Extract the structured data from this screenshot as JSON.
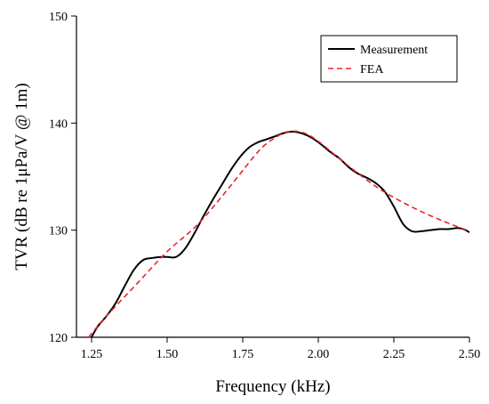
{
  "chart_data": {
    "type": "line",
    "title": "",
    "xlabel": "Frequency (kHz)",
    "ylabel": "TVR (dB re 1μPa/V @ 1m)",
    "xlim": [
      1.2,
      2.5
    ],
    "ylim": [
      120,
      150
    ],
    "xticks": [
      "1.25",
      "1.50",
      "1.75",
      "2.00",
      "2.25",
      "2.50"
    ],
    "yticks": [
      "120",
      "130",
      "140",
      "150"
    ],
    "grid": false,
    "legend_position": "top-right",
    "series": [
      {
        "name": "Measurement",
        "color": "#000000",
        "style": "solid",
        "x": [
          1.25,
          1.27,
          1.3,
          1.33,
          1.36,
          1.39,
          1.42,
          1.45,
          1.48,
          1.5,
          1.53,
          1.56,
          1.59,
          1.62,
          1.65,
          1.68,
          1.71,
          1.74,
          1.77,
          1.8,
          1.83,
          1.86,
          1.89,
          1.92,
          1.95,
          1.98,
          2.01,
          2.04,
          2.07,
          2.1,
          2.13,
          2.16,
          2.19,
          2.22,
          2.25,
          2.28,
          2.31,
          2.34,
          2.37,
          2.4,
          2.43,
          2.46,
          2.48,
          2.5
        ],
        "y": [
          120.0,
          121.0,
          122.0,
          123.2,
          124.8,
          126.3,
          127.2,
          127.4,
          127.5,
          127.5,
          127.5,
          128.3,
          129.7,
          131.3,
          132.8,
          134.2,
          135.6,
          136.8,
          137.7,
          138.2,
          138.5,
          138.8,
          139.1,
          139.2,
          139.0,
          138.6,
          138.0,
          137.3,
          136.7,
          135.9,
          135.3,
          134.9,
          134.4,
          133.6,
          132.2,
          130.6,
          129.9,
          129.9,
          130.0,
          130.1,
          130.1,
          130.2,
          130.1,
          129.8
        ]
      },
      {
        "name": "FEA",
        "color": "#e8232a",
        "style": "dashed",
        "x": [
          1.24,
          1.3,
          1.4,
          1.5,
          1.6,
          1.7,
          1.8,
          1.85,
          1.9,
          1.95,
          2.0,
          2.1,
          2.2,
          2.3,
          2.4,
          2.5
        ],
        "y": [
          120.0,
          122.0,
          125.0,
          128.0,
          130.5,
          133.8,
          137.3,
          138.5,
          139.2,
          139.1,
          138.3,
          136.0,
          133.9,
          132.3,
          131.0,
          129.9
        ]
      }
    ]
  }
}
